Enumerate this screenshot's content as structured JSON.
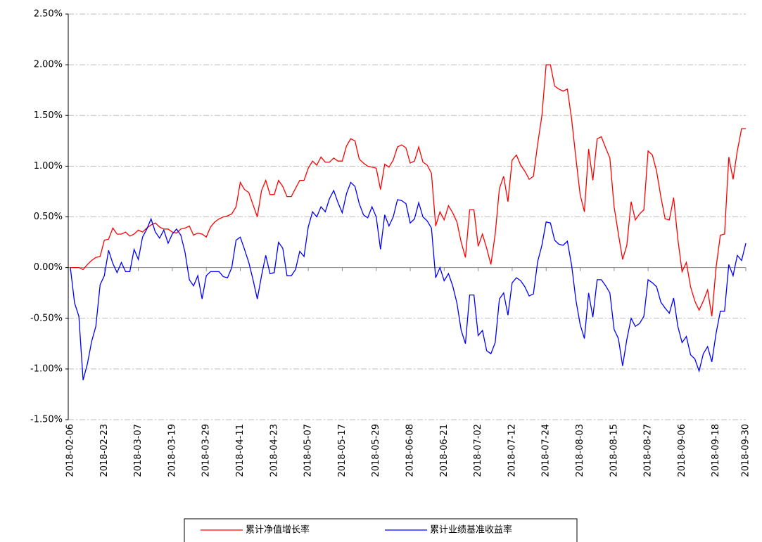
{
  "chart_data": {
    "type": "line",
    "categories": [
      "2018-02-06",
      null,
      null,
      null,
      null,
      null,
      null,
      null,
      "2018-02-23",
      null,
      null,
      null,
      null,
      null,
      null,
      null,
      "2018-03-07",
      null,
      null,
      null,
      null,
      null,
      null,
      null,
      "2018-03-19",
      null,
      null,
      null,
      null,
      null,
      null,
      null,
      "2018-03-29",
      null,
      null,
      null,
      null,
      null,
      null,
      null,
      "2018-04-11",
      null,
      null,
      null,
      null,
      null,
      null,
      null,
      "2018-04-23",
      null,
      null,
      null,
      null,
      null,
      null,
      null,
      "2018-05-07",
      null,
      null,
      null,
      null,
      null,
      null,
      null,
      "2018-05-17",
      null,
      null,
      null,
      null,
      null,
      null,
      null,
      "2018-05-29",
      null,
      null,
      null,
      null,
      null,
      null,
      null,
      "2018-06-08",
      null,
      null,
      null,
      null,
      null,
      null,
      null,
      "2018-06-21",
      null,
      null,
      null,
      null,
      null,
      null,
      null,
      "2018-07-02",
      null,
      null,
      null,
      null,
      null,
      null,
      null,
      "2018-07-12",
      null,
      null,
      null,
      null,
      null,
      null,
      null,
      "2018-07-24",
      null,
      null,
      null,
      null,
      null,
      null,
      null,
      "2018-08-03",
      null,
      null,
      null,
      null,
      null,
      null,
      null,
      "2018-08-15",
      null,
      null,
      null,
      null,
      null,
      null,
      null,
      "2018-08-27",
      null,
      null,
      null,
      null,
      null,
      null,
      null,
      "2018-09-06",
      null,
      null,
      null,
      null,
      null,
      null,
      null,
      "2018-09-18",
      null,
      null,
      null,
      null,
      null,
      null,
      "2018-09-30"
    ],
    "series": [
      {
        "name": "累计净值增长率",
        "color": "#ff0000",
        "values": [
          0.0,
          0.0,
          0.0,
          -0.02,
          0.03,
          0.07,
          0.1,
          0.11,
          0.27,
          0.28,
          0.39,
          0.33,
          0.33,
          0.35,
          0.31,
          0.33,
          0.37,
          0.35,
          0.39,
          0.42,
          0.44,
          0.4,
          0.38,
          0.38,
          0.35,
          0.34,
          0.38,
          0.39,
          0.41,
          0.32,
          0.34,
          0.33,
          0.3,
          0.4,
          0.45,
          0.48,
          0.5,
          0.51,
          0.53,
          0.6,
          0.84,
          0.77,
          0.74,
          0.62,
          0.5,
          0.76,
          0.86,
          0.72,
          0.72,
          0.86,
          0.8,
          0.7,
          0.7,
          0.78,
          0.86,
          0.86,
          0.98,
          1.05,
          1.01,
          1.09,
          1.04,
          1.04,
          1.08,
          1.05,
          1.05,
          1.2,
          1.27,
          1.25,
          1.07,
          1.03,
          1.0,
          0.99,
          0.98,
          0.77,
          1.02,
          0.99,
          1.06,
          1.19,
          1.21,
          1.18,
          1.03,
          1.05,
          1.19,
          1.04,
          1.01,
          0.93,
          0.41,
          0.55,
          0.47,
          0.61,
          0.54,
          0.45,
          0.25,
          0.1,
          0.57,
          0.57,
          0.21,
          0.33,
          0.19,
          0.03,
          0.33,
          0.78,
          0.9,
          0.65,
          1.06,
          1.11,
          1.01,
          0.95,
          0.87,
          0.9,
          1.22,
          1.5,
          2.0,
          2.0,
          1.79,
          1.76,
          1.74,
          1.76,
          1.46,
          1.08,
          0.72,
          0.55,
          1.17,
          0.86,
          1.27,
          1.29,
          1.18,
          1.08,
          0.6,
          0.33,
          0.08,
          0.22,
          0.65,
          0.47,
          0.53,
          0.57,
          1.15,
          1.11,
          0.95,
          0.7,
          0.48,
          0.47,
          0.69,
          0.28,
          -0.04,
          0.05,
          -0.19,
          -0.33,
          -0.42,
          -0.33,
          -0.22,
          -0.48,
          0.0,
          0.32,
          0.33,
          1.09,
          0.87,
          1.15,
          1.37,
          1.37
        ]
      },
      {
        "name": "累计业绩基准收益率",
        "color": "#0000ff",
        "values": [
          0.0,
          -0.35,
          -0.48,
          -1.11,
          -0.95,
          -0.73,
          -0.58,
          -0.17,
          -0.08,
          0.17,
          0.04,
          -0.05,
          0.05,
          -0.04,
          -0.04,
          0.18,
          0.08,
          0.3,
          0.38,
          0.48,
          0.35,
          0.29,
          0.37,
          0.24,
          0.33,
          0.38,
          0.32,
          0.15,
          -0.12,
          -0.18,
          -0.08,
          -0.31,
          -0.08,
          -0.04,
          -0.04,
          -0.04,
          -0.09,
          -0.1,
          0.0,
          0.27,
          0.3,
          0.18,
          0.05,
          -0.12,
          -0.31,
          -0.08,
          0.12,
          -0.06,
          -0.05,
          0.25,
          0.19,
          -0.08,
          -0.08,
          -0.02,
          0.16,
          0.11,
          0.4,
          0.55,
          0.5,
          0.6,
          0.55,
          0.68,
          0.76,
          0.64,
          0.54,
          0.73,
          0.84,
          0.8,
          0.63,
          0.52,
          0.49,
          0.6,
          0.5,
          0.18,
          0.52,
          0.41,
          0.5,
          0.67,
          0.66,
          0.63,
          0.44,
          0.48,
          0.64,
          0.5,
          0.46,
          0.39,
          -0.1,
          0.0,
          -0.13,
          -0.06,
          -0.18,
          -0.35,
          -0.62,
          -0.75,
          -0.27,
          -0.27,
          -0.67,
          -0.62,
          -0.82,
          -0.85,
          -0.74,
          -0.31,
          -0.25,
          -0.47,
          -0.15,
          -0.1,
          -0.13,
          -0.19,
          -0.28,
          -0.26,
          0.06,
          0.22,
          0.45,
          0.44,
          0.27,
          0.23,
          0.22,
          0.26,
          0.02,
          -0.32,
          -0.56,
          -0.7,
          -0.25,
          -0.49,
          -0.12,
          -0.12,
          -0.18,
          -0.25,
          -0.61,
          -0.7,
          -0.97,
          -0.71,
          -0.5,
          -0.58,
          -0.55,
          -0.48,
          -0.12,
          -0.15,
          -0.19,
          -0.34,
          -0.4,
          -0.45,
          -0.3,
          -0.58,
          -0.74,
          -0.68,
          -0.86,
          -0.9,
          -1.02,
          -0.85,
          -0.78,
          -0.93,
          -0.65,
          -0.43,
          -0.43,
          0.03,
          -0.08,
          0.12,
          0.07,
          0.24
        ]
      }
    ],
    "ylim": [
      -1.5,
      2.5
    ],
    "yticks": [
      {
        "value": -1.5,
        "label": "-1.50%"
      },
      {
        "value": -1.0,
        "label": "-1.00%"
      },
      {
        "value": -0.5,
        "label": "-0.50%"
      },
      {
        "value": 0,
        "label": "0.00%"
      },
      {
        "value": 0.5,
        "label": "0.50%"
      },
      {
        "value": 1.0,
        "label": "1.00%"
      },
      {
        "value": 1.5,
        "label": "1.50%"
      },
      {
        "value": 2.0,
        "label": "2.00%"
      },
      {
        "value": 2.5,
        "label": "2.50%"
      }
    ],
    "grid": true,
    "legend": "bottom"
  }
}
